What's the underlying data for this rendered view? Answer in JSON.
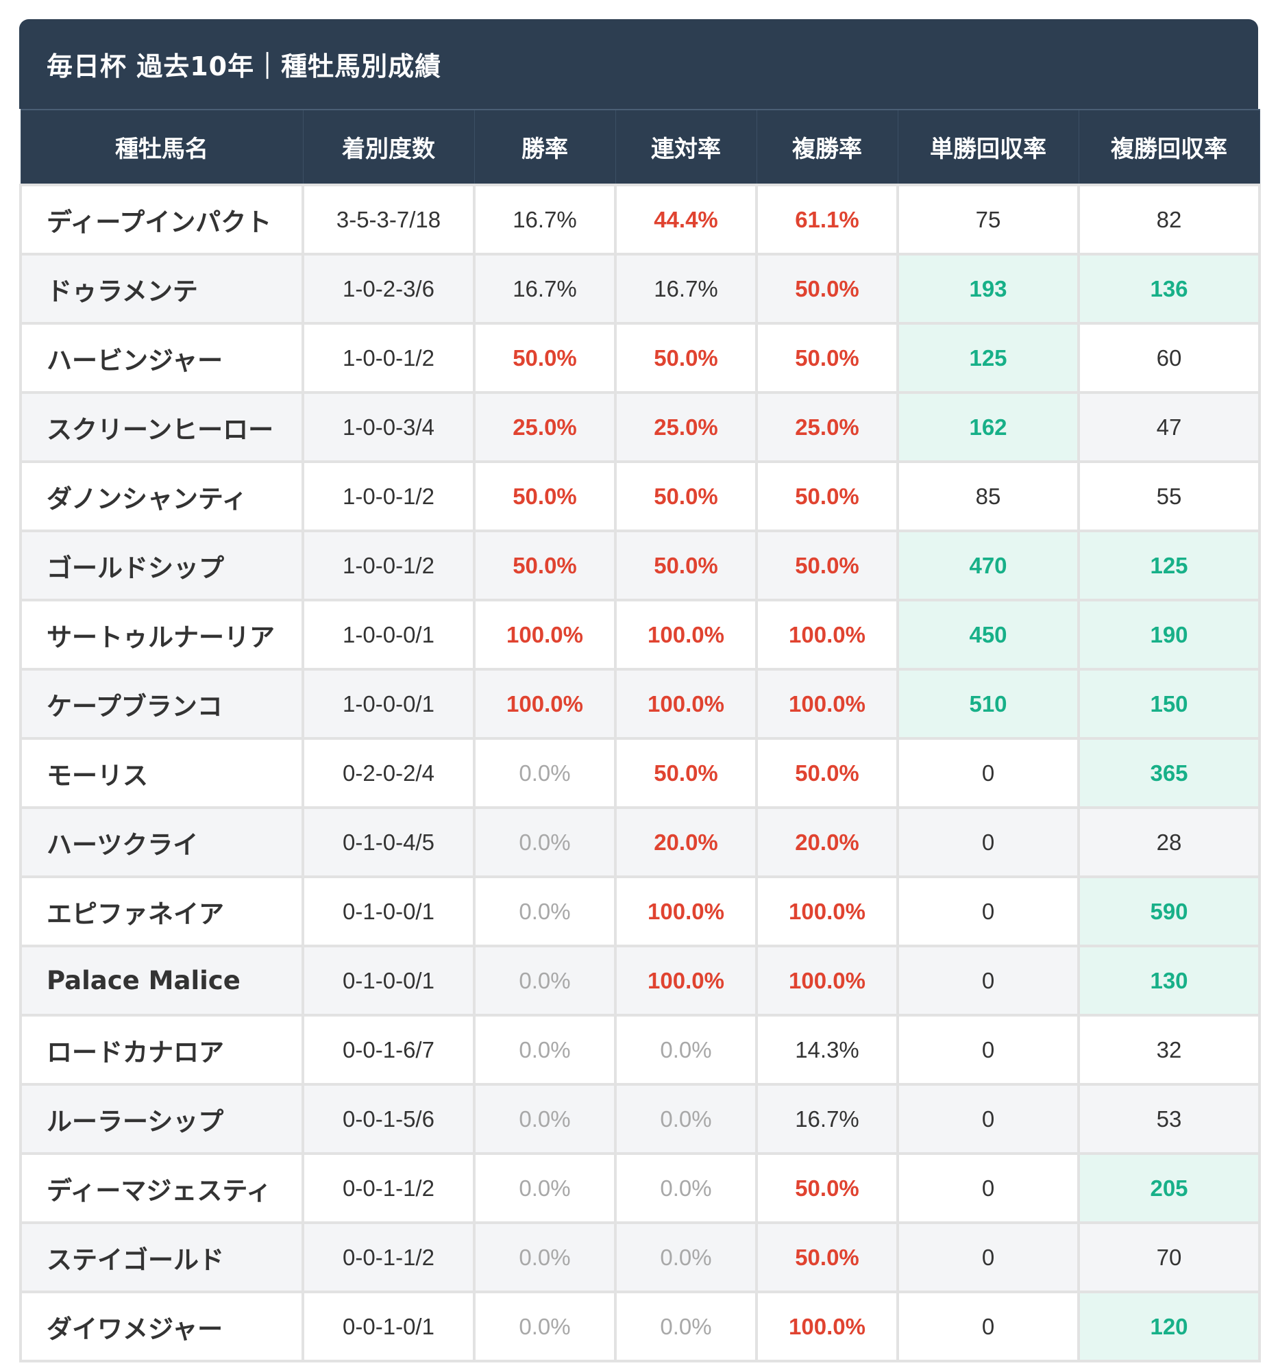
{
  "title": "毎日杯 過去10年｜種牡馬別成績",
  "colors": {
    "header_bg": "#2d3e51",
    "highlight_rate": "#e04330",
    "highlight_return": "#17b088",
    "return_cell_bg": "#e6f7f2",
    "zero_rate": "#a8a8a8"
  },
  "columns": [
    "種牡馬名",
    "着別度数",
    "勝率",
    "連対率",
    "複勝率",
    "単勝回収率",
    "複勝回収率"
  ],
  "rows": [
    [
      "ディープインパクト",
      "3-5-3-7/18",
      "16.7%",
      "44.4%",
      "61.1%",
      "75",
      "82"
    ],
    [
      "ドゥラメンテ",
      "1-0-2-3/6",
      "16.7%",
      "16.7%",
      "50.0%",
      "193",
      "136"
    ],
    [
      "ハービンジャー",
      "1-0-0-1/2",
      "50.0%",
      "50.0%",
      "50.0%",
      "125",
      "60"
    ],
    [
      "スクリーンヒーロー",
      "1-0-0-3/4",
      "25.0%",
      "25.0%",
      "25.0%",
      "162",
      "47"
    ],
    [
      "ダノンシャンティ",
      "1-0-0-1/2",
      "50.0%",
      "50.0%",
      "50.0%",
      "85",
      "55"
    ],
    [
      "ゴールドシップ",
      "1-0-0-1/2",
      "50.0%",
      "50.0%",
      "50.0%",
      "470",
      "125"
    ],
    [
      "サートゥルナーリア",
      "1-0-0-0/1",
      "100.0%",
      "100.0%",
      "100.0%",
      "450",
      "190"
    ],
    [
      "ケープブランコ",
      "1-0-0-0/1",
      "100.0%",
      "100.0%",
      "100.0%",
      "510",
      "150"
    ],
    [
      "モーリス",
      "0-2-0-2/4",
      "0.0%",
      "50.0%",
      "50.0%",
      "0",
      "365"
    ],
    [
      "ハーツクライ",
      "0-1-0-4/5",
      "0.0%",
      "20.0%",
      "20.0%",
      "0",
      "28"
    ],
    [
      "エピファネイア",
      "0-1-0-0/1",
      "0.0%",
      "100.0%",
      "100.0%",
      "0",
      "590"
    ],
    [
      "Palace Malice",
      "0-1-0-0/1",
      "0.0%",
      "100.0%",
      "100.0%",
      "0",
      "130"
    ],
    [
      "ロードカナロア",
      "0-0-1-6/7",
      "0.0%",
      "0.0%",
      "14.3%",
      "0",
      "32"
    ],
    [
      "ルーラーシップ",
      "0-0-1-5/6",
      "0.0%",
      "0.0%",
      "16.7%",
      "0",
      "53"
    ],
    [
      "ディーマジェスティ",
      "0-0-1-1/2",
      "0.0%",
      "0.0%",
      "50.0%",
      "0",
      "205"
    ],
    [
      "ステイゴールド",
      "0-0-1-1/2",
      "0.0%",
      "0.0%",
      "50.0%",
      "0",
      "70"
    ],
    [
      "ダイワメジャー",
      "0-0-1-0/1",
      "0.0%",
      "0.0%",
      "100.0%",
      "0",
      "120"
    ]
  ]
}
